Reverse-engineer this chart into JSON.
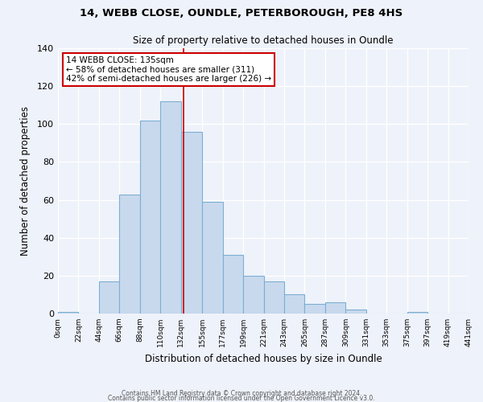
{
  "title1": "14, WEBB CLOSE, OUNDLE, PETERBOROUGH, PE8 4HS",
  "title2": "Size of property relative to detached houses in Oundle",
  "xlabel": "Distribution of detached houses by size in Oundle",
  "ylabel": "Number of detached properties",
  "bar_values": [
    1,
    0,
    17,
    63,
    102,
    112,
    96,
    59,
    31,
    20,
    17,
    10,
    5,
    6,
    2,
    0,
    0,
    1,
    0,
    0
  ],
  "bin_edges": [
    0,
    22,
    44,
    66,
    88,
    110,
    132,
    155,
    177,
    199,
    221,
    243,
    265,
    287,
    309,
    331,
    353,
    375,
    397,
    419,
    441
  ],
  "tick_labels": [
    "0sqm",
    "22sqm",
    "44sqm",
    "66sqm",
    "88sqm",
    "110sqm",
    "132sqm",
    "155sqm",
    "177sqm",
    "199sqm",
    "221sqm",
    "243sqm",
    "265sqm",
    "287sqm",
    "309sqm",
    "331sqm",
    "353sqm",
    "375sqm",
    "397sqm",
    "419sqm",
    "441sqm"
  ],
  "bar_color": "#c9d9ed",
  "bar_edge_color": "#7bafd4",
  "property_line_x": 135,
  "property_line_color": "#cc0000",
  "annotation_title": "14 WEBB CLOSE: 135sqm",
  "annotation_line1": "← 58% of detached houses are smaller (311)",
  "annotation_line2": "42% of semi-detached houses are larger (226) →",
  "annotation_box_color": "#ffffff",
  "annotation_box_edge": "#cc0000",
  "ylim": [
    0,
    140
  ],
  "background_color": "#eef2fa",
  "grid_color": "#ffffff",
  "footer1": "Contains HM Land Registry data © Crown copyright and database right 2024.",
  "footer2": "Contains public sector information licensed under the Open Government Licence v3.0."
}
